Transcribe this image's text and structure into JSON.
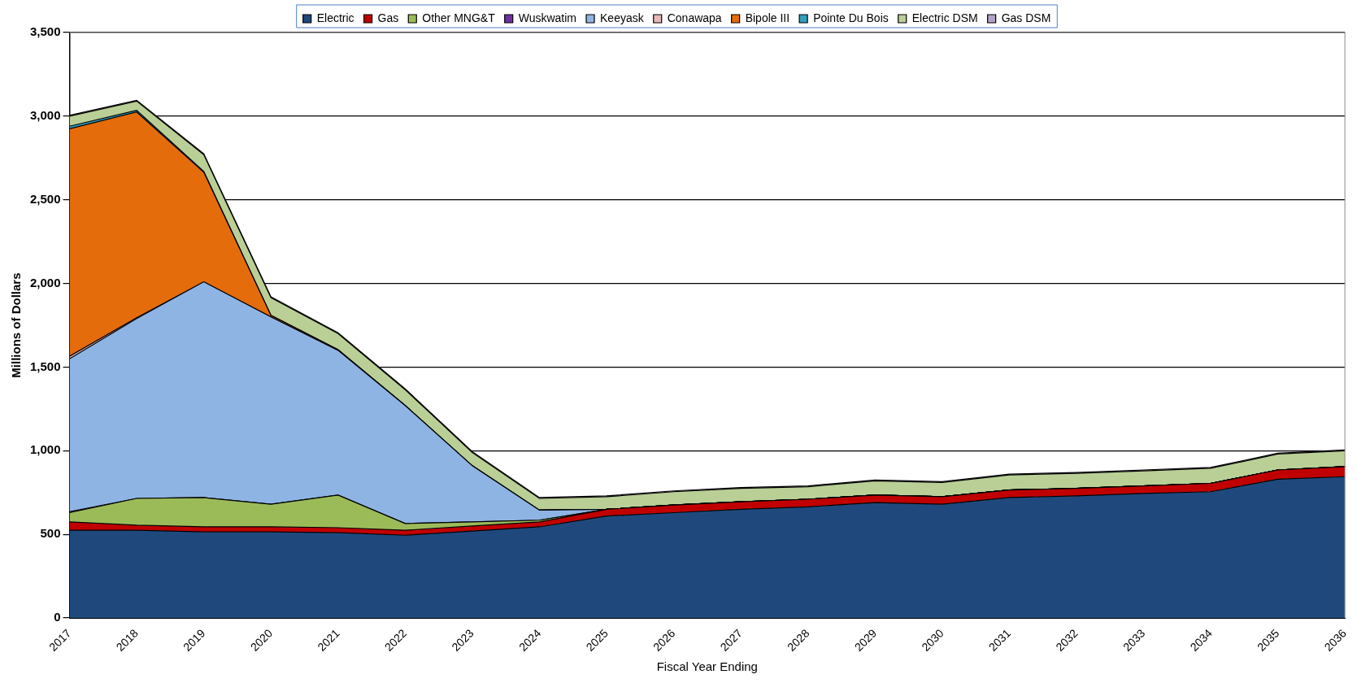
{
  "chart_data": {
    "type": "area",
    "stacked": true,
    "xlabel": "Fiscal Year Ending",
    "ylabel": "Millions of Dollars",
    "categories": [
      "2017",
      "2018",
      "2019",
      "2020",
      "2021",
      "2022",
      "2023",
      "2024",
      "2025",
      "2026",
      "2027",
      "2028",
      "2029",
      "2030",
      "2031",
      "2032",
      "2033",
      "2034",
      "2035",
      "2036"
    ],
    "series": [
      {
        "name": "Electric",
        "color": "#1f497d",
        "values": [
          525,
          525,
          515,
          515,
          510,
          495,
          520,
          545,
          610,
          630,
          650,
          665,
          690,
          680,
          720,
          730,
          745,
          755,
          830,
          845
        ]
      },
      {
        "name": "Gas",
        "color": "#c00000",
        "values": [
          50,
          30,
          30,
          30,
          30,
          30,
          30,
          30,
          40,
          45,
          45,
          45,
          45,
          45,
          45,
          45,
          45,
          50,
          55,
          60
        ]
      },
      {
        "name": "Other MNG&T",
        "color": "#9bbb59",
        "values": [
          55,
          160,
          175,
          135,
          195,
          40,
          25,
          10,
          0,
          0,
          0,
          0,
          0,
          0,
          0,
          0,
          0,
          0,
          0,
          0
        ]
      },
      {
        "name": "Wuskwatim",
        "color": "#7030a0",
        "values": [
          5,
          0,
          0,
          0,
          0,
          0,
          0,
          0,
          0,
          0,
          0,
          0,
          0,
          0,
          0,
          0,
          0,
          0,
          0,
          0
        ]
      },
      {
        "name": "Keeyask",
        "color": "#8eb4e3",
        "values": [
          915,
          1075,
          1290,
          1120,
          865,
          705,
          335,
          60,
          0,
          0,
          0,
          0,
          0,
          0,
          0,
          0,
          0,
          0,
          0,
          0
        ]
      },
      {
        "name": "Conawapa",
        "color": "#e6b9b8",
        "values": [
          15,
          5,
          0,
          0,
          0,
          0,
          0,
          0,
          0,
          0,
          0,
          0,
          0,
          0,
          0,
          0,
          0,
          0,
          0,
          0
        ]
      },
      {
        "name": "Bipole III",
        "color": "#e46c0a",
        "values": [
          1360,
          1230,
          655,
          10,
          5,
          0,
          0,
          0,
          0,
          0,
          0,
          0,
          0,
          0,
          0,
          0,
          0,
          0,
          0,
          0
        ]
      },
      {
        "name": "Pointe Du Bois",
        "color": "#31a0c0",
        "values": [
          15,
          10,
          5,
          0,
          0,
          0,
          0,
          0,
          0,
          0,
          0,
          0,
          0,
          0,
          0,
          0,
          0,
          0,
          0,
          0
        ]
      },
      {
        "name": "Electric DSM",
        "color": "#b9cf96",
        "values": [
          60,
          55,
          100,
          105,
          95,
          95,
          80,
          70,
          75,
          80,
          80,
          75,
          85,
          85,
          90,
          90,
          90,
          90,
          95,
          95
        ]
      },
      {
        "name": "Gas DSM",
        "color": "#b3a2c7",
        "values": [
          5,
          5,
          5,
          5,
          5,
          5,
          5,
          5,
          5,
          5,
          5,
          5,
          5,
          5,
          5,
          5,
          5,
          5,
          5,
          5
        ]
      }
    ],
    "ylim": [
      0,
      3500
    ],
    "yticks": [
      0,
      500,
      {
        "value": 1000,
        "label": "1,000"
      },
      {
        "value": 1500,
        "label": "1,500"
      },
      {
        "value": 2000,
        "label": "2,000"
      },
      {
        "value": 2500,
        "label": "2,500"
      },
      {
        "value": 3000,
        "label": "3,000"
      },
      {
        "value": 3500,
        "label": "3,500"
      }
    ],
    "grid": "y",
    "legend": "top"
  }
}
